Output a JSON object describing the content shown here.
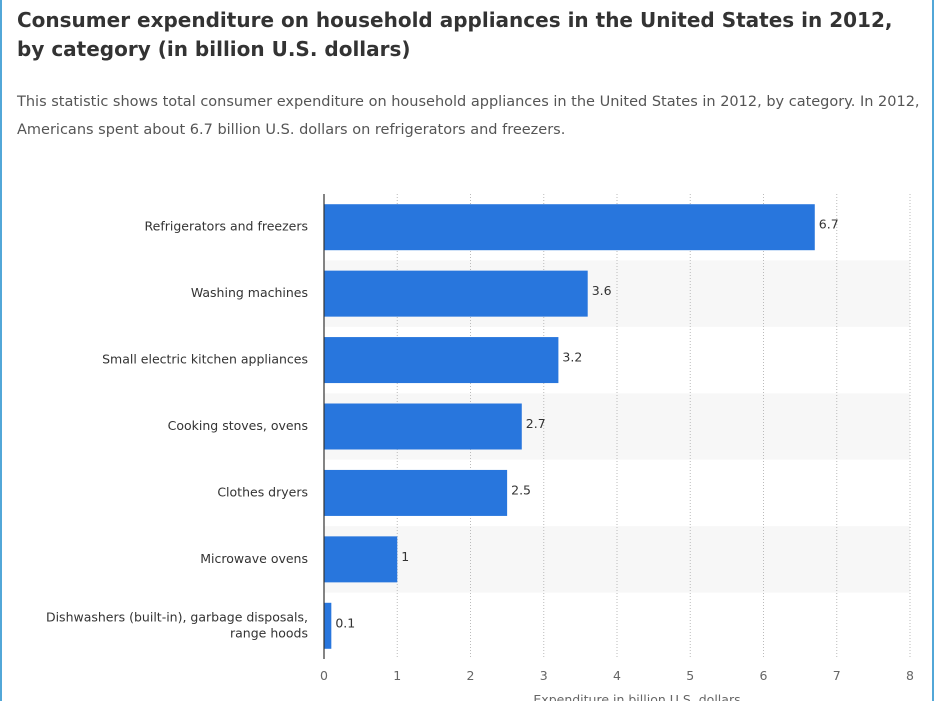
{
  "header": {
    "title": "Consumer expenditure on household appliances in the United States in 2012, by category (in billion U.S. dollars)",
    "description": "This statistic shows total consumer expenditure on household appliances in the United States in 2012, by category. In 2012, Americans spent about 6.7 billion U.S. dollars on refrigerators and freezers."
  },
  "chart_data": {
    "type": "bar",
    "orientation": "horizontal",
    "categories": [
      [
        "Refrigerators and freezers"
      ],
      [
        "Washing machines"
      ],
      [
        "Small electric kitchen appliances"
      ],
      [
        "Cooking stoves, ovens"
      ],
      [
        "Clothes dryers"
      ],
      [
        "Microwave ovens"
      ],
      [
        "Dishwashers (built-in), garbage disposals,",
        "range hoods"
      ]
    ],
    "values": [
      6.7,
      3.6,
      3.2,
      2.7,
      2.5,
      1,
      0.1
    ],
    "value_labels": [
      "6.7",
      "3.6",
      "3.2",
      "2.7",
      "2.5",
      "1",
      "0.1"
    ],
    "xlabel": "Expenditure in billion U.S. dollars",
    "ylabel": "",
    "xlim": [
      0,
      8
    ],
    "xticks": [
      0,
      1,
      2,
      3,
      4,
      5,
      6,
      7,
      8
    ],
    "grid": true,
    "bar_color": "#2876dd",
    "band_color": "#f7f7f7",
    "legend": "none"
  }
}
